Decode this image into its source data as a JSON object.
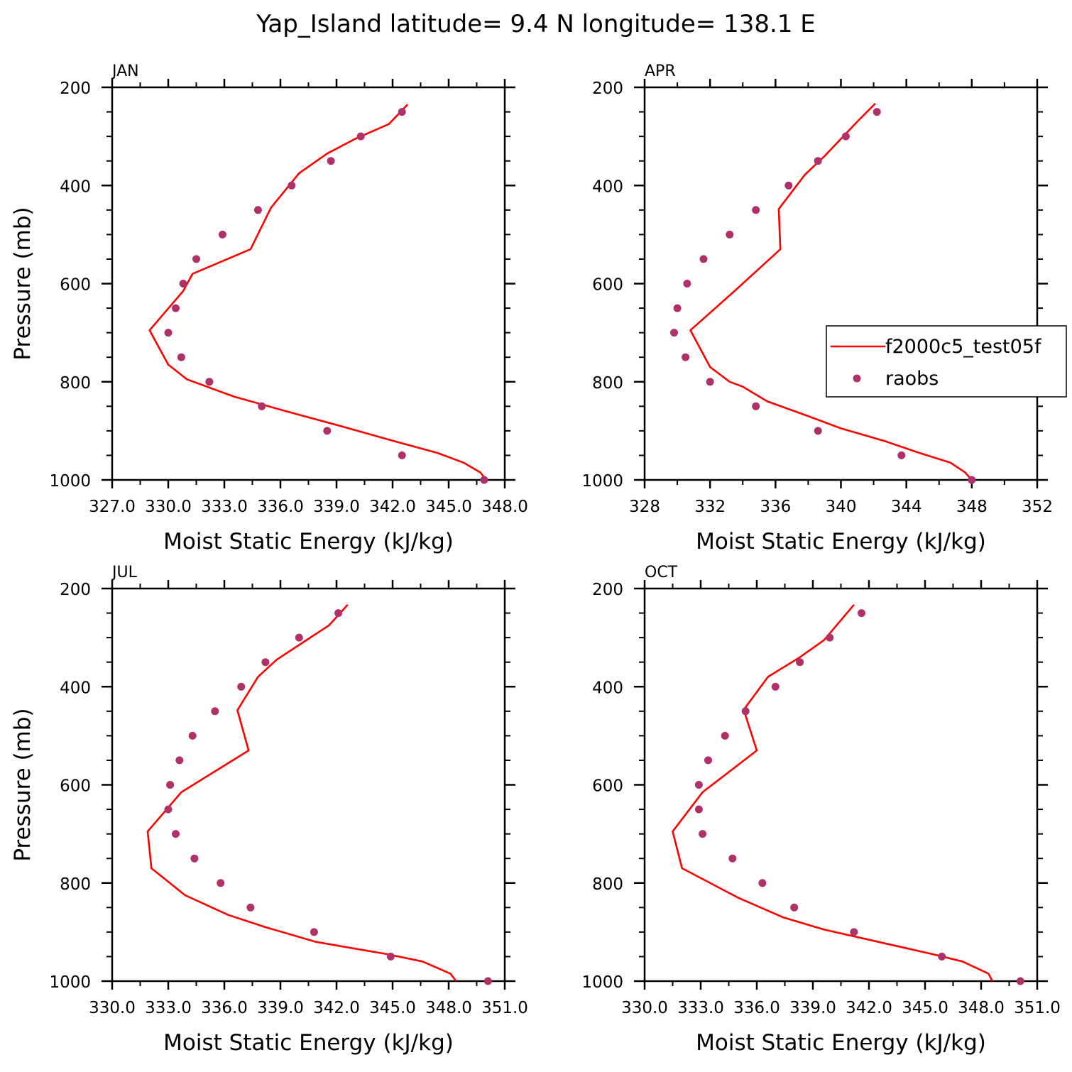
{
  "figure": {
    "title": "Yap_Island  latitude= 9.4 N longitude= 138.1 E"
  },
  "colors": {
    "model_line": "#ff0000",
    "obs_marker": "#b0306a",
    "axes": "#000000",
    "background": "#ffffff"
  },
  "legend": {
    "placement": "right-middle of APR panel",
    "entries": [
      {
        "label": "f2000c5_test05f",
        "marker": "line",
        "color": "#ff0000"
      },
      {
        "label": "raobs",
        "marker": "dot",
        "color": "#b0306a"
      }
    ]
  },
  "chart_data": [
    {
      "type": "line",
      "panel_label": "JAN",
      "xlabel": "Moist Static Energy (kJ/kg)",
      "ylabel": "Pressure (mb)",
      "xlim": [
        327,
        348
      ],
      "ylim": [
        1000,
        200
      ],
      "y_reversed": true,
      "xticks": [
        327,
        330,
        333,
        336,
        339,
        342,
        345,
        348
      ],
      "xtick_labels": [
        "327.0",
        "330.0",
        "333.0",
        "336.0",
        "339.0",
        "342.0",
        "345.0",
        "348.0"
      ],
      "yticks": [
        200,
        400,
        600,
        800,
        1000
      ],
      "ytick_labels": [
        "200",
        "400",
        "600",
        "800",
        "1000"
      ],
      "series": [
        {
          "name": "f2000c5_test05f",
          "kind": "line",
          "x": [
            347.0,
            346.7,
            345.8,
            344.4,
            342.0,
            339.2,
            336.3,
            333.5,
            331.0,
            330.0,
            329.0,
            330.8,
            331.3,
            334.4,
            335.5,
            337.0,
            338.5,
            340.0,
            341.8,
            342.8
          ],
          "y": [
            1000,
            985,
            965,
            945,
            920,
            890,
            860,
            830,
            795,
            765,
            695,
            615,
            580,
            530,
            445,
            375,
            335,
            305,
            275,
            235
          ]
        },
        {
          "name": "raobs",
          "kind": "scatter",
          "x": [
            346.9,
            342.5,
            338.5,
            335.0,
            332.2,
            330.7,
            330.0,
            330.4,
            330.8,
            331.5,
            332.9,
            334.8,
            336.6,
            338.7,
            340.3,
            342.5
          ],
          "y": [
            1000,
            950,
            900,
            850,
            800,
            750,
            700,
            650,
            600,
            550,
            500,
            450,
            400,
            350,
            300,
            250
          ]
        }
      ]
    },
    {
      "type": "line",
      "panel_label": "APR",
      "xlabel": "Moist Static Energy (kJ/kg)",
      "ylabel": "",
      "xlim": [
        328,
        352
      ],
      "ylim": [
        1000,
        200
      ],
      "y_reversed": true,
      "xticks": [
        328,
        332,
        336,
        340,
        344,
        348,
        352
      ],
      "xtick_labels": [
        "328",
        "332",
        "336",
        "340",
        "344",
        "348",
        "352"
      ],
      "yticks": [
        200,
        400,
        600,
        800,
        1000
      ],
      "ytick_labels": [
        "200",
        "400",
        "600",
        "800",
        "1000"
      ],
      "series": [
        {
          "name": "f2000c5_test05f",
          "kind": "line",
          "x": [
            348.0,
            347.6,
            346.7,
            344.8,
            342.6,
            340.0,
            338.0,
            335.5,
            334.0,
            333.2,
            332.0,
            330.8,
            333.5,
            336.3,
            336.2,
            337.8,
            339.0,
            340.0,
            341.0,
            342.1
          ],
          "y": [
            1000,
            985,
            965,
            945,
            920,
            895,
            870,
            840,
            810,
            800,
            770,
            695,
            615,
            530,
            448,
            378,
            340,
            305,
            270,
            233
          ]
        },
        {
          "name": "raobs",
          "kind": "scatter",
          "x": [
            348.0,
            343.7,
            338.6,
            334.8,
            332.0,
            330.5,
            329.8,
            330.0,
            330.6,
            331.6,
            333.2,
            334.8,
            336.8,
            338.6,
            340.3,
            342.2
          ],
          "y": [
            1000,
            950,
            900,
            850,
            800,
            750,
            700,
            650,
            600,
            550,
            500,
            450,
            400,
            350,
            300,
            250
          ]
        }
      ]
    },
    {
      "type": "line",
      "panel_label": "JUL",
      "xlabel": "Moist Static Energy (kJ/kg)",
      "ylabel": "Pressure (mb)",
      "xlim": [
        330,
        351
      ],
      "ylim": [
        1000,
        200
      ],
      "y_reversed": true,
      "xticks": [
        330,
        333,
        336,
        339,
        342,
        345,
        348,
        351
      ],
      "xtick_labels": [
        "330.0",
        "333.0",
        "336.0",
        "339.0",
        "342.0",
        "345.0",
        "348.0",
        "351.0"
      ],
      "yticks": [
        200,
        400,
        600,
        800,
        1000
      ],
      "ytick_labels": [
        "200",
        "400",
        "600",
        "800",
        "1000"
      ],
      "series": [
        {
          "name": "f2000c5_test05f",
          "kind": "line",
          "x": [
            348.4,
            348.1,
            346.6,
            344.7,
            340.9,
            338.2,
            336.2,
            333.9,
            332.1,
            331.9,
            333.7,
            337.3,
            336.7,
            337.8,
            338.8,
            340.2,
            341.6,
            342.6
          ],
          "y": [
            1000,
            985,
            960,
            945,
            920,
            890,
            865,
            825,
            770,
            695,
            615,
            530,
            448,
            380,
            345,
            310,
            275,
            233
          ]
        },
        {
          "name": "raobs",
          "kind": "scatter",
          "x": [
            350.1,
            344.9,
            340.8,
            337.4,
            335.8,
            334.4,
            333.4,
            333.0,
            333.1,
            333.6,
            334.3,
            335.5,
            336.9,
            338.2,
            340.0,
            342.1
          ],
          "y": [
            1000,
            950,
            900,
            850,
            800,
            750,
            700,
            650,
            600,
            550,
            500,
            450,
            400,
            350,
            300,
            250
          ]
        }
      ]
    },
    {
      "type": "line",
      "panel_label": "OCT",
      "xlabel": "Moist Static Energy (kJ/kg)",
      "ylabel": "",
      "xlim": [
        330,
        351
      ],
      "ylim": [
        1000,
        200
      ],
      "y_reversed": true,
      "xticks": [
        330,
        333,
        336,
        339,
        342,
        345,
        348,
        351
      ],
      "xtick_labels": [
        "330.0",
        "333.0",
        "336.0",
        "339.0",
        "342.0",
        "345.0",
        "348.0",
        "351.0"
      ],
      "yticks": [
        200,
        400,
        600,
        800,
        1000
      ],
      "ytick_labels": [
        "200",
        "400",
        "600",
        "800",
        "1000"
      ],
      "series": [
        {
          "name": "f2000c5_test05f",
          "kind": "line",
          "x": [
            348.6,
            348.4,
            347.0,
            345.4,
            342.5,
            339.6,
            337.4,
            335.0,
            332.0,
            331.5,
            333.1,
            336.0,
            335.3,
            336.6,
            338.3,
            339.6,
            341.2
          ],
          "y": [
            1000,
            985,
            960,
            945,
            920,
            895,
            870,
            830,
            770,
            695,
            615,
            530,
            447,
            380,
            340,
            305,
            233
          ]
        },
        {
          "name": "raobs",
          "kind": "scatter",
          "x": [
            350.1,
            345.9,
            341.2,
            338.0,
            336.3,
            334.7,
            333.1,
            332.9,
            332.9,
            333.4,
            334.3,
            335.4,
            337.0,
            338.3,
            339.9,
            341.6
          ],
          "y": [
            1000,
            950,
            900,
            850,
            800,
            750,
            700,
            650,
            600,
            550,
            500,
            450,
            400,
            350,
            300,
            250
          ]
        }
      ]
    }
  ]
}
